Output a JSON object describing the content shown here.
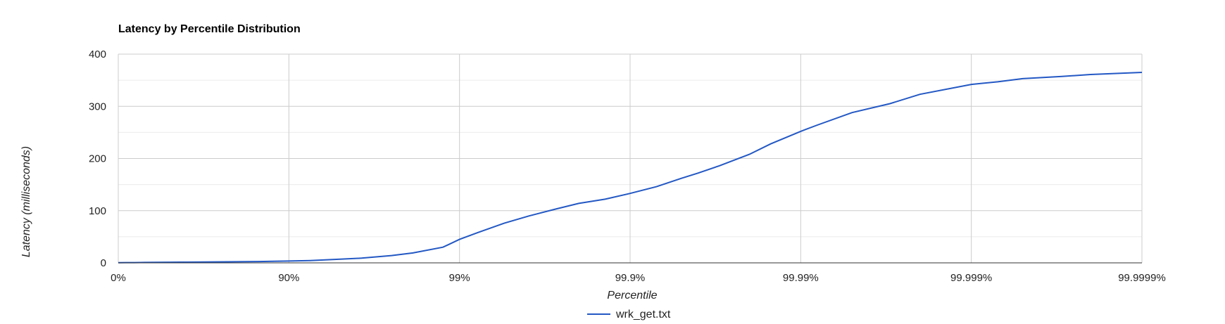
{
  "chart_data": {
    "type": "line",
    "title": "Latency by Percentile Distribution",
    "xlabel": "Percentile",
    "ylabel": "Latency (milliseconds)",
    "x_scale": "log of 1/(1-percentile)",
    "x_ticks": [
      "0%",
      "90%",
      "99%",
      "99.9%",
      "99.99%",
      "99.999%",
      "99.9999%"
    ],
    "y_ticks": [
      "0",
      "100",
      "200",
      "300",
      "400"
    ],
    "ylim": [
      0,
      400
    ],
    "grid": true,
    "legend_position": "bottom",
    "colors": {
      "series": "#2358c4",
      "grid_major": "#cccccc",
      "grid_minor": "#ebebeb",
      "axis": "#333333"
    },
    "series": [
      {
        "name": "wrk_get.txt",
        "x": [
          "0%",
          "10%",
          "20%",
          "30%",
          "40%",
          "50%",
          "60%",
          "70%",
          "80%",
          "85%",
          "90%",
          "92.5%",
          "95%",
          "96.25%",
          "97.5%",
          "98.125%",
          "98.75%",
          "99%",
          "99.21875%",
          "99.4531%",
          "99.6094%",
          "99.7266%",
          "99.8%",
          "99.86%",
          "99.9%",
          "99.93%",
          "99.95%",
          "99.96%",
          "99.97%",
          "99.98%",
          "99.985%",
          "99.99%",
          "99.992%",
          "99.995%",
          "99.997%",
          "99.998%",
          "99.999%",
          "99.9993%",
          "99.9995%",
          "99.9997%",
          "99.9998%",
          "99.9999%"
        ],
        "y": [
          0.4,
          0.5,
          0.6,
          0.8,
          1.0,
          1.2,
          1.4,
          1.7,
          2.2,
          2.6,
          3.5,
          4.5,
          7,
          9,
          14,
          19,
          30,
          45,
          58,
          76,
          90,
          103,
          114,
          122,
          133,
          146,
          162,
          172,
          186,
          208,
          228,
          252,
          264,
          288,
          305,
          323,
          342,
          347,
          353,
          357,
          361,
          365
        ]
      }
    ]
  }
}
